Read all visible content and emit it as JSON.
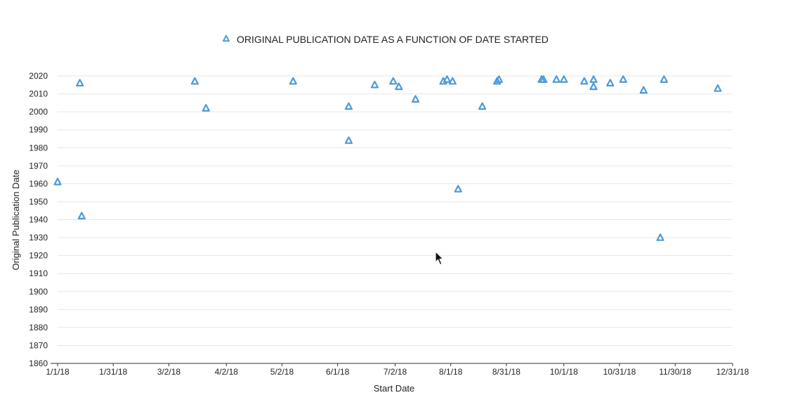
{
  "chart_data": {
    "type": "scatter",
    "series": [
      {
        "name": "ORIGINAL PUBLICATION DATE AS A FUNCTION OF DATE STARTED",
        "color": "#4d9ad8",
        "marker": "triangle",
        "points": [
          {
            "x": "2018-01-01",
            "y": 1961
          },
          {
            "x": "2018-01-13",
            "y": 2016
          },
          {
            "x": "2018-01-14",
            "y": 1942
          },
          {
            "x": "2018-03-16",
            "y": 2017
          },
          {
            "x": "2018-03-22",
            "y": 2002
          },
          {
            "x": "2018-05-08",
            "y": 2017
          },
          {
            "x": "2018-06-07",
            "y": 2003
          },
          {
            "x": "2018-06-07",
            "y": 1984
          },
          {
            "x": "2018-06-21",
            "y": 2015
          },
          {
            "x": "2018-07-01",
            "y": 2017
          },
          {
            "x": "2018-07-04",
            "y": 2014
          },
          {
            "x": "2018-07-13",
            "y": 2007
          },
          {
            "x": "2018-07-28",
            "y": 2017
          },
          {
            "x": "2018-07-30",
            "y": 2018
          },
          {
            "x": "2018-08-02",
            "y": 2017
          },
          {
            "x": "2018-08-05",
            "y": 1957
          },
          {
            "x": "2018-08-18",
            "y": 2003
          },
          {
            "x": "2018-08-26",
            "y": 2017
          },
          {
            "x": "2018-08-27",
            "y": 2018
          },
          {
            "x": "2018-09-19",
            "y": 2018
          },
          {
            "x": "2018-09-20",
            "y": 2018
          },
          {
            "x": "2018-09-27",
            "y": 2018
          },
          {
            "x": "2018-10-01",
            "y": 2018
          },
          {
            "x": "2018-10-12",
            "y": 2017
          },
          {
            "x": "2018-10-17",
            "y": 2018
          },
          {
            "x": "2018-10-17",
            "y": 2014
          },
          {
            "x": "2018-10-26",
            "y": 2016
          },
          {
            "x": "2018-11-02",
            "y": 2018
          },
          {
            "x": "2018-11-13",
            "y": 2012
          },
          {
            "x": "2018-11-22",
            "y": 1930
          },
          {
            "x": "2018-11-24",
            "y": 2018
          },
          {
            "x": "2018-12-23",
            "y": 2013
          }
        ]
      }
    ],
    "xlabel": "Start Date",
    "ylabel": "Original Publication Date",
    "x_ticks": [
      {
        "date": "2018-01-01",
        "label": "1/1/18"
      },
      {
        "date": "2018-01-31",
        "label": "1/31/18"
      },
      {
        "date": "2018-03-02",
        "label": "3/2/18"
      },
      {
        "date": "2018-04-02",
        "label": "4/2/18"
      },
      {
        "date": "2018-05-02",
        "label": "5/2/18"
      },
      {
        "date": "2018-06-01",
        "label": "6/1/18"
      },
      {
        "date": "2018-07-02",
        "label": "7/2/18"
      },
      {
        "date": "2018-08-01",
        "label": "8/1/18"
      },
      {
        "date": "2018-08-31",
        "label": "8/31/18"
      },
      {
        "date": "2018-10-01",
        "label": "10/1/18"
      },
      {
        "date": "2018-10-31",
        "label": "10/31/18"
      },
      {
        "date": "2018-11-30",
        "label": "11/30/18"
      },
      {
        "date": "2018-12-31",
        "label": "12/31/18"
      }
    ],
    "y_ticks": [
      1860,
      1870,
      1880,
      1890,
      1900,
      1910,
      1920,
      1930,
      1940,
      1950,
      1960,
      1970,
      1980,
      1990,
      2000,
      2010,
      2020
    ],
    "xlim": [
      "2018-01-01",
      "2018-12-31"
    ],
    "ylim": [
      1860,
      2020
    ],
    "grid": true,
    "legend_position": "top"
  },
  "colors": {
    "marker": "#4d9ad8",
    "grid": "#e6e6e6",
    "axis": "#333333",
    "text": "#222222"
  },
  "cursor_icon": "mouse-pointer-icon"
}
